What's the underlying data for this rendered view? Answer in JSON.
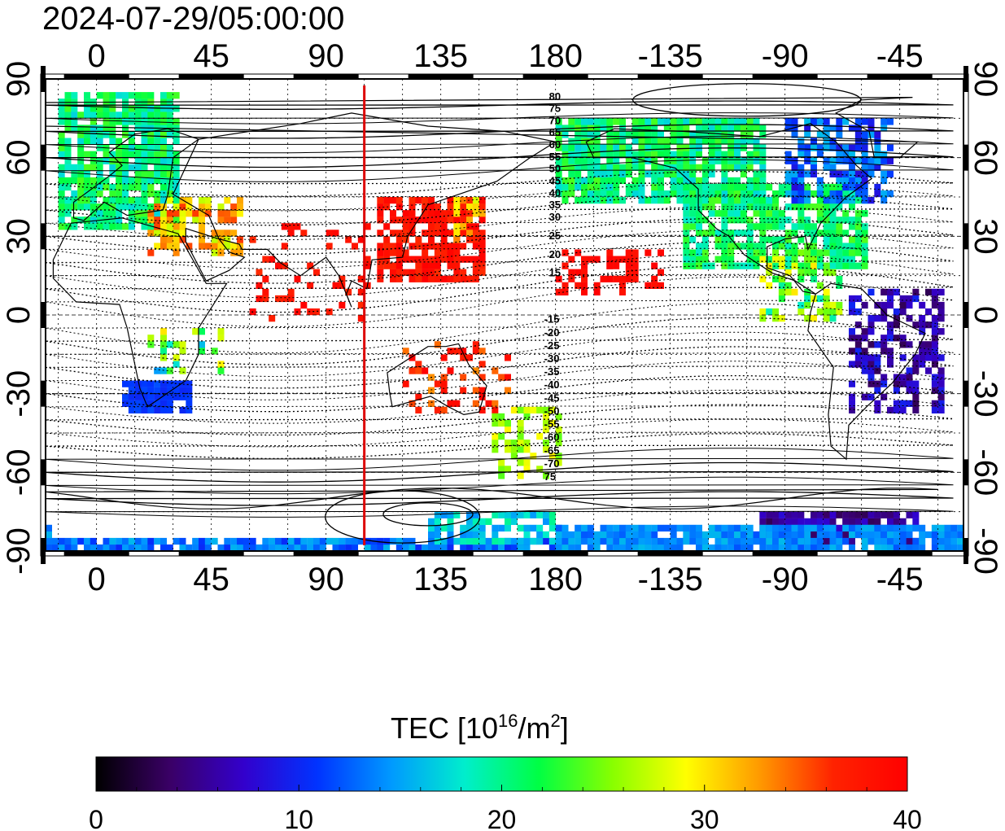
{
  "timestamp": "2024-07-29/05:00:00",
  "map": {
    "top_lon_labels": [
      "0",
      "45",
      "90",
      "135",
      "180",
      "-135",
      "-90",
      "-45"
    ],
    "bottom_lon_labels": [
      "0",
      "45",
      "90",
      "135",
      "180",
      "-135",
      "-90",
      "-45"
    ],
    "left_lat_labels": [
      "90",
      "60",
      "30",
      "0",
      "-30",
      "-60",
      "-90"
    ],
    "right_lat_labels": [
      "90",
      "60",
      "30",
      "0",
      "-30",
      "-60",
      "-90"
    ],
    "lon_ticks": [
      0,
      45,
      90,
      135,
      180,
      -135,
      -90,
      -45
    ],
    "lat_ticks": [
      90,
      60,
      30,
      0,
      -30,
      -60,
      -90
    ],
    "lon_range": [
      -20,
      340
    ],
    "lat_range": [
      -90,
      90
    ],
    "red_meridian_lon": 105,
    "contour_labels_north": [
      "80",
      "75",
      "70",
      "65",
      "60",
      "55",
      "50",
      "45",
      "40",
      "35",
      "30",
      "25",
      "20",
      "15"
    ],
    "contour_labels_south": [
      "-15",
      "-20",
      "-25",
      "-30",
      "-35",
      "-40",
      "-45",
      "-50",
      "-55",
      "-60",
      "-65",
      "-70",
      "75"
    ]
  },
  "colorbar": {
    "label_main": "TEC  [10",
    "label_sup1": "16",
    "label_mid": "/m",
    "label_sup2": "2",
    "label_end": "]",
    "tick_labels": [
      "0",
      "10",
      "20",
      "30",
      "40"
    ],
    "min": 0,
    "max": 40,
    "colors": [
      "#000000",
      "#3a0066",
      "#3300cc",
      "#0033ff",
      "#0099ff",
      "#00eecc",
      "#00ff44",
      "#88ff00",
      "#ffff00",
      "#ff9900",
      "#ff2200",
      "#ff0000"
    ]
  },
  "colors": {
    "meridian": "#dd0000",
    "grid": "#000000"
  }
}
